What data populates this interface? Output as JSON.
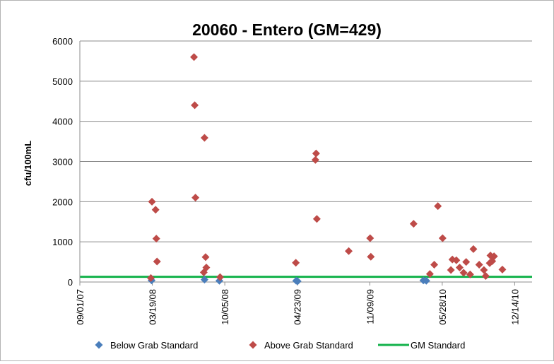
{
  "chart_data": {
    "type": "scatter",
    "title": "20060 - Entero (GM=429)",
    "xlabel": "",
    "ylabel": "cfu/100mL",
    "ylim": [
      0,
      6000
    ],
    "yticks": [
      0,
      1000,
      2000,
      3000,
      4000,
      5000,
      6000
    ],
    "xlim": [
      "2007-09-01",
      "2011-01-31"
    ],
    "xticks": [
      "09/01/07",
      "03/19/08",
      "10/05/08",
      "04/23/09",
      "11/09/09",
      "05/28/10",
      "12/14/10"
    ],
    "grid": "horizontal",
    "legend_position": "bottom",
    "colors": {
      "below": "#4a7ebb",
      "above": "#be4b48",
      "gm": "#12b24a",
      "grid": "#8c8c8c"
    },
    "series": [
      {
        "name": "Below Grab Standard",
        "marker": "diamond",
        "x": [
          "2008-03-17",
          "2008-08-10",
          "2008-09-20",
          "2009-04-20",
          "2009-04-24",
          "2010-04-06",
          "2010-04-14"
        ],
        "y": [
          40,
          60,
          30,
          30,
          20,
          40,
          30
        ]
      },
      {
        "name": "Above Grab Standard",
        "marker": "diamond",
        "x": [
          "2008-03-15",
          "2008-03-18",
          "2008-03-28",
          "2008-03-30",
          "2008-04-01",
          "2008-07-12",
          "2008-07-14",
          "2008-07-16",
          "2008-08-08",
          "2008-08-10",
          "2008-08-13",
          "2008-08-15",
          "2008-09-22",
          "2009-04-19",
          "2009-06-12",
          "2009-06-14",
          "2009-06-16",
          "2009-09-12",
          "2009-11-10",
          "2009-11-12",
          "2010-03-10",
          "2010-04-24",
          "2010-05-06",
          "2010-05-16",
          "2010-05-29",
          "2010-06-21",
          "2010-06-25",
          "2010-07-06",
          "2010-07-15",
          "2010-07-26",
          "2010-08-02",
          "2010-08-13",
          "2010-08-22",
          "2010-09-07",
          "2010-09-20",
          "2010-09-25",
          "2010-10-06",
          "2010-10-08",
          "2010-10-13",
          "2010-10-18",
          "2010-11-10"
        ],
        "y": [
          100,
          2000,
          1800,
          1080,
          510,
          5600,
          4400,
          2100,
          240,
          3590,
          620,
          360,
          120,
          480,
          3040,
          3200,
          1570,
          770,
          1090,
          630,
          1450,
          200,
          430,
          1890,
          1090,
          300,
          560,
          540,
          360,
          230,
          500,
          190,
          820,
          430,
          300,
          150,
          470,
          660,
          520,
          640,
          310
        ]
      },
      {
        "name": "GM Standard",
        "marker": "line",
        "x": [
          "2007-09-01",
          "2011-01-31"
        ],
        "y": [
          130,
          130
        ]
      }
    ]
  }
}
